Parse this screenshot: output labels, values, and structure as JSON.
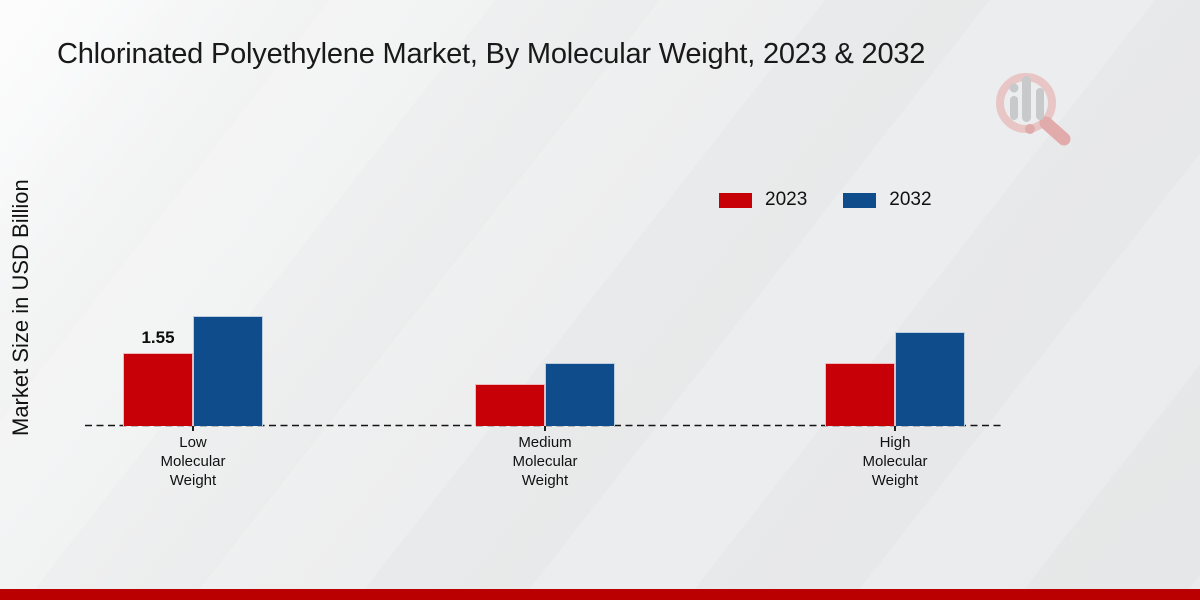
{
  "title": "Chlorinated Polyethylene Market, By Molecular Weight, 2023 & 2032",
  "y_axis_label": "Market Size in USD Billion",
  "colors": {
    "series_2023_red": "#c70008",
    "series_2032_blue": "#0f4c8c",
    "footer_bar": "#bb0001",
    "text": "#191919",
    "watermark_pink": "#e7c1c1",
    "watermark_gray": "#c7c9cb"
  },
  "watermark": {
    "icon": "magnifier-bar-chart-logo"
  },
  "chart_data": {
    "type": "bar",
    "title": "Chlorinated Polyethylene Market, By Molecular Weight, 2023 & 2032",
    "xlabel": "",
    "ylabel": "Market Size in USD Billion",
    "categories": [
      "Low\nMolecular\nWeight",
      "Medium\nMolecular\nWeight",
      "High\nMolecular\nWeight"
    ],
    "series": [
      {
        "name": "2023",
        "color": "#c70008",
        "values": [
          1.55,
          0.9,
          1.35
        ],
        "data_labels": [
          "1.55",
          "",
          ""
        ]
      },
      {
        "name": "2032",
        "color": "#0f4c8c",
        "values": [
          2.35,
          1.35,
          2.0
        ],
        "data_labels": [
          "",
          "",
          ""
        ]
      }
    ],
    "ylim": [
      0,
      2.6
    ],
    "grid": false,
    "y_axis_ticks_visible": false,
    "baseline_style": "dashed",
    "legend_position": "top-right"
  }
}
